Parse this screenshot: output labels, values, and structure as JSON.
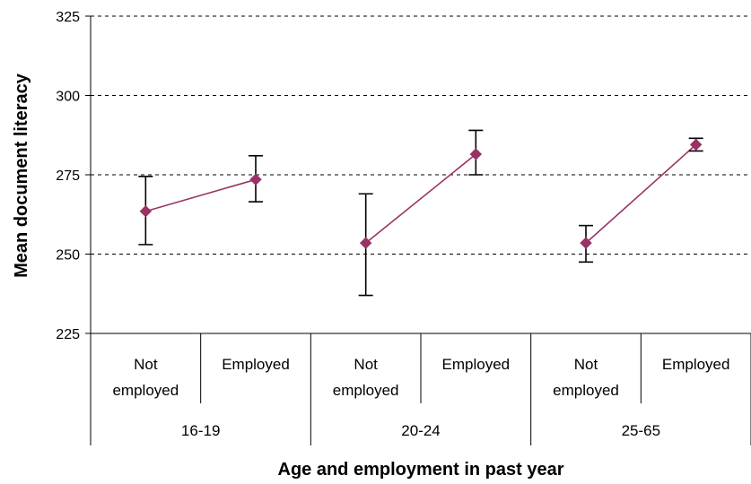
{
  "chart_data": {
    "type": "line",
    "title": "",
    "xlabel": "Age and employment in past year",
    "ylabel": "Mean document literacy",
    "ylim": [
      225,
      325
    ],
    "yticks": [
      "225",
      "250",
      "275",
      "300",
      "325"
    ],
    "grid": true,
    "legend": "none",
    "marker_color": "#993366",
    "groups": [
      {
        "name": "16-19",
        "points": [
          {
            "category": "Not employed",
            "value": 263.5,
            "error_low": 253,
            "error_high": 274.5
          },
          {
            "category": "Employed",
            "value": 273.5,
            "error_low": 266.5,
            "error_high": 281
          }
        ]
      },
      {
        "name": "20-24",
        "points": [
          {
            "category": "Not employed",
            "value": 253.5,
            "error_low": 237,
            "error_high": 269
          },
          {
            "category": "Employed",
            "value": 281.5,
            "error_low": 275,
            "error_high": 289
          }
        ]
      },
      {
        "name": "25-65",
        "points": [
          {
            "category": "Not employed",
            "value": 253.5,
            "error_low": 247.5,
            "error_high": 259
          },
          {
            "category": "Employed",
            "value": 284.5,
            "error_low": 282.5,
            "error_high": 286.5
          }
        ]
      }
    ]
  }
}
